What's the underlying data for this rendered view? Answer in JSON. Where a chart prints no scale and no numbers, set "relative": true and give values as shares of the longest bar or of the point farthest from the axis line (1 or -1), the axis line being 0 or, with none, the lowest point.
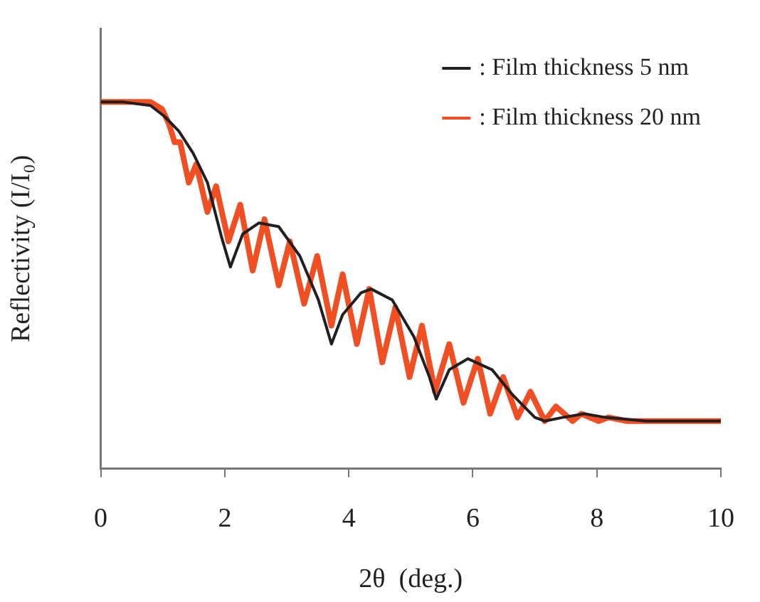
{
  "chart_data": {
    "type": "line",
    "xlabel": "2θ  (deg.)",
    "ylabel": "Reflectivity (I/I₀)",
    "relative": true,
    "xlim": [
      0,
      10
    ],
    "xticks": [
      0,
      2,
      4,
      6,
      8,
      10
    ],
    "grid": false,
    "legend": "top right",
    "marker": "none",
    "line_style": "solid",
    "series": [
      {
        "name": ": Film thickness 5 nm",
        "color": "#231f20",
        "x": [
          0,
          0.34,
          0.8,
          1.03,
          1.26,
          1.49,
          1.72,
          1.95,
          2.09,
          2.29,
          2.55,
          2.87,
          3.21,
          3.51,
          3.72,
          3.9,
          4.2,
          4.36,
          4.7,
          5.05,
          5.3,
          5.41,
          5.62,
          5.92,
          6.31,
          6.65,
          7.0,
          7.16,
          7.45,
          7.8,
          8.14,
          8.8,
          10
        ],
        "values": [
          1.0,
          1.0,
          0.99,
          0.96,
          0.92,
          0.86,
          0.78,
          0.63,
          0.55,
          0.64,
          0.67,
          0.66,
          0.58,
          0.46,
          0.34,
          0.42,
          0.48,
          0.49,
          0.46,
          0.36,
          0.25,
          0.19,
          0.27,
          0.3,
          0.27,
          0.2,
          0.14,
          0.13,
          0.14,
          0.15,
          0.14,
          0.13,
          0.13
        ]
      },
      {
        "name": ": Film thickness 20 nm",
        "color": "#f04e23",
        "x": [
          0,
          0.34,
          0.8,
          0.99,
          1.1,
          1.19,
          1.28,
          1.42,
          1.54,
          1.72,
          1.86,
          2.06,
          2.25,
          2.45,
          2.64,
          2.87,
          3.05,
          3.28,
          3.49,
          3.72,
          3.9,
          4.13,
          4.33,
          4.54,
          4.75,
          4.98,
          5.18,
          5.39,
          5.62,
          5.85,
          6.08,
          6.28,
          6.49,
          6.72,
          6.93,
          7.16,
          7.34,
          7.61,
          7.75,
          8.03,
          8.19,
          8.49,
          10
        ],
        "values": [
          1.0,
          1.0,
          1.0,
          0.98,
          0.94,
          0.89,
          0.89,
          0.78,
          0.83,
          0.7,
          0.77,
          0.62,
          0.72,
          0.54,
          0.68,
          0.5,
          0.62,
          0.45,
          0.58,
          0.39,
          0.53,
          0.34,
          0.49,
          0.29,
          0.44,
          0.25,
          0.39,
          0.21,
          0.34,
          0.18,
          0.3,
          0.15,
          0.25,
          0.14,
          0.21,
          0.13,
          0.17,
          0.13,
          0.15,
          0.13,
          0.14,
          0.13,
          0.13
        ]
      }
    ]
  }
}
